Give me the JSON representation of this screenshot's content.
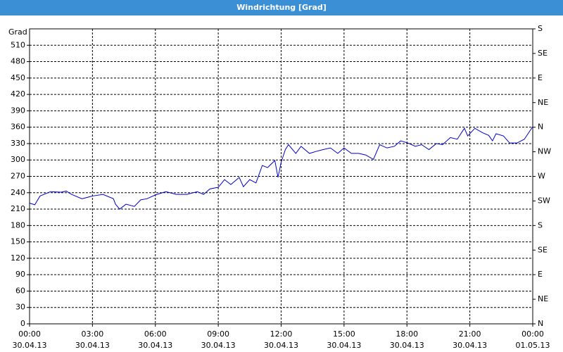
{
  "chart_data": {
    "type": "line",
    "title": "Windrichtung [Grad]",
    "y_label": "Grad",
    "color": "#0000c8",
    "grid": true,
    "xlim": [
      0,
      24
    ],
    "xticks": [
      {
        "value": 0,
        "label": "00:00",
        "date": "30.04.13"
      },
      {
        "value": 3,
        "label": "03:00",
        "date": "30.04.13"
      },
      {
        "value": 6,
        "label": "06:00",
        "date": "30.04.13"
      },
      {
        "value": 9,
        "label": "09:00",
        "date": "30.04.13"
      },
      {
        "value": 12,
        "label": "12:00",
        "date": "30.04.13"
      },
      {
        "value": 15,
        "label": "15:00",
        "date": "30.04.13"
      },
      {
        "value": 18,
        "label": "18:00",
        "date": "30.04.13"
      },
      {
        "value": 21,
        "label": "21:00",
        "date": "30.04.13"
      },
      {
        "value": 24,
        "label": "00:00",
        "date": "01.05.13"
      }
    ],
    "ylim": [
      0,
      540
    ],
    "yticks": [
      0,
      30,
      60,
      90,
      120,
      150,
      180,
      210,
      240,
      270,
      300,
      330,
      360,
      390,
      420,
      450,
      480,
      510
    ],
    "y2lim": [
      0,
      540
    ],
    "y2ticks": [
      {
        "value": 0,
        "label": "N"
      },
      {
        "value": 45,
        "label": "NE"
      },
      {
        "value": 90,
        "label": "E"
      },
      {
        "value": 135,
        "label": "SE"
      },
      {
        "value": 180,
        "label": "S"
      },
      {
        "value": 225,
        "label": "SW"
      },
      {
        "value": 270,
        "label": "W"
      },
      {
        "value": 315,
        "label": "NW"
      },
      {
        "value": 360,
        "label": "N"
      },
      {
        "value": 405,
        "label": "NE"
      },
      {
        "value": 450,
        "label": "E"
      },
      {
        "value": 495,
        "label": "SE"
      },
      {
        "value": 540,
        "label": "S"
      }
    ],
    "x": [
      0,
      0.25,
      0.5,
      1,
      1.5,
      1.75,
      2,
      2.5,
      3,
      3.5,
      4,
      4.1,
      4.3,
      4.6,
      5,
      5.3,
      5.6,
      6,
      6.5,
      7,
      7.5,
      8,
      8.3,
      8.6,
      9,
      9.3,
      9.6,
      10,
      10.2,
      10.5,
      10.8,
      11.1,
      11.35,
      11.7,
      11.85,
      12,
      12.2,
      12.35,
      12.7,
      12.95,
      13.35,
      13.7,
      14,
      14.35,
      14.7,
      15,
      15.35,
      15.7,
      16.04,
      16.4,
      16.7,
      17.05,
      17.4,
      17.7,
      18.05,
      18.4,
      18.7,
      19.05,
      19.4,
      19.7,
      20.07,
      20.4,
      20.74,
      20.9,
      21.24,
      21.6,
      21.9,
      22.08,
      22.25,
      22.6,
      22.9,
      23.25,
      23.6,
      24
    ],
    "values": [
      221,
      218,
      234,
      242,
      241,
      243,
      237,
      229,
      234,
      237,
      229,
      219,
      210,
      219,
      215,
      227,
      229,
      236,
      242,
      237,
      237,
      242,
      237,
      247,
      250,
      264,
      255,
      268,
      251,
      264,
      258,
      290,
      286,
      299,
      268,
      296,
      319,
      328,
      312,
      325,
      312,
      316,
      319,
      322,
      312,
      322,
      312,
      312,
      309,
      301,
      328,
      322,
      325,
      335,
      331,
      325,
      328,
      319,
      330,
      328,
      341,
      338,
      358,
      344,
      358,
      350,
      345,
      335,
      348,
      344,
      331,
      331,
      338,
      361
    ]
  }
}
